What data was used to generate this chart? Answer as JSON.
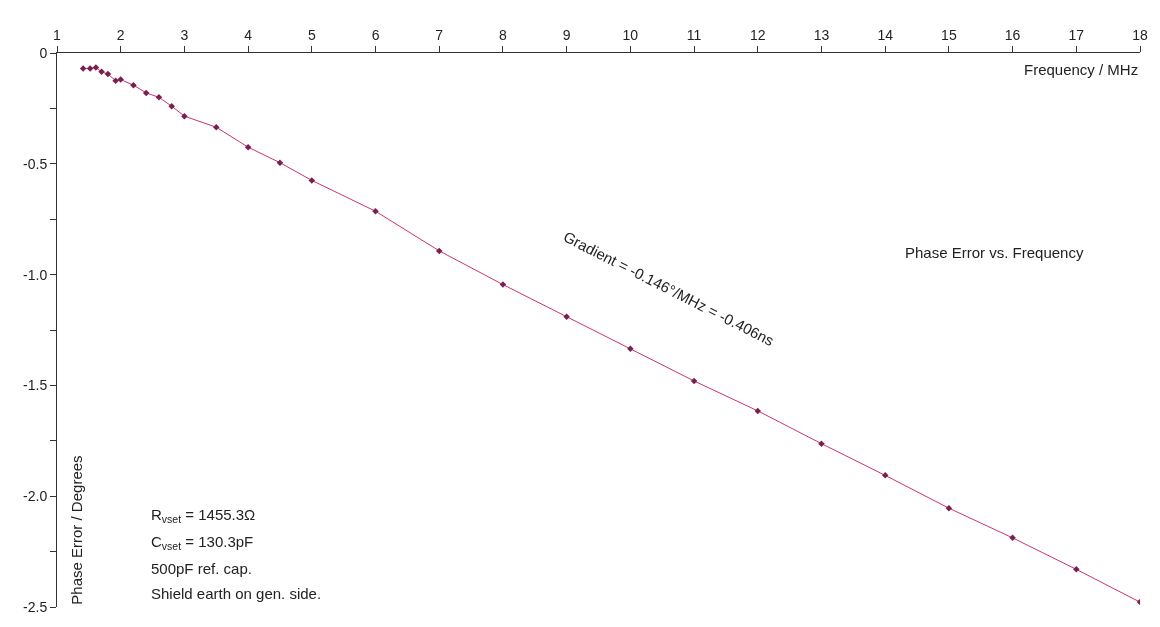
{
  "chart_data": {
    "type": "line",
    "title": "Phase Error vs. Frequency",
    "xlabel": "Frequency / MHz",
    "ylabel": "Phase Error / Degrees",
    "x": [
      1.41,
      1.52,
      1.61,
      1.7,
      1.8,
      1.92,
      2.0,
      2.2,
      2.4,
      2.6,
      2.8,
      3.0,
      3.5,
      4.0,
      4.5,
      5.0,
      6,
      7,
      8,
      9,
      10,
      11,
      12,
      13,
      14,
      15,
      16,
      17,
      18
    ],
    "series": [
      {
        "color": "#cc3377",
        "values": [
          -0.07,
          -0.07,
          -0.065,
          -0.085,
          -0.095,
          -0.125,
          -0.12,
          -0.145,
          -0.18,
          -0.2,
          -0.24,
          -0.285,
          -0.335,
          -0.425,
          -0.495,
          -0.575,
          -0.714,
          -0.893,
          -1.045,
          -1.19,
          -1.335,
          -1.48,
          -1.615,
          -1.763,
          -1.906,
          -2.054,
          -2.188,
          -2.33,
          -2.478
        ]
      }
    ],
    "marker": "diamond",
    "line_style": "solid",
    "legend": false,
    "xlim": [
      1,
      18
    ],
    "xticks": [
      1,
      2,
      3,
      4,
      5,
      6,
      7,
      8,
      9,
      10,
      11,
      12,
      13,
      14,
      15,
      16,
      17,
      18
    ],
    "ylim": [
      -2.5,
      0
    ],
    "yticks": [
      0,
      {
        "value": -0.25,
        "label": null
      },
      -0.5,
      {
        "value": -0.75,
        "label": null
      },
      {
        "value": -1,
        "label": "-1.0"
      },
      {
        "value": -1.25,
        "label": null
      },
      -1.5,
      {
        "value": -1.75,
        "label": null
      },
      {
        "value": -2,
        "label": "-2.0"
      },
      {
        "value": -2.25,
        "label": null
      },
      -2.5
    ],
    "annotations": [
      "Gradient = -0.146°/MHz = -0.406ns",
      "R$_{vset}$ = 1455.3Ω",
      "C$_{vset}$ = 130.3pF",
      "500pF ref. cap.",
      "Shield earth on gen. side."
    ]
  }
}
